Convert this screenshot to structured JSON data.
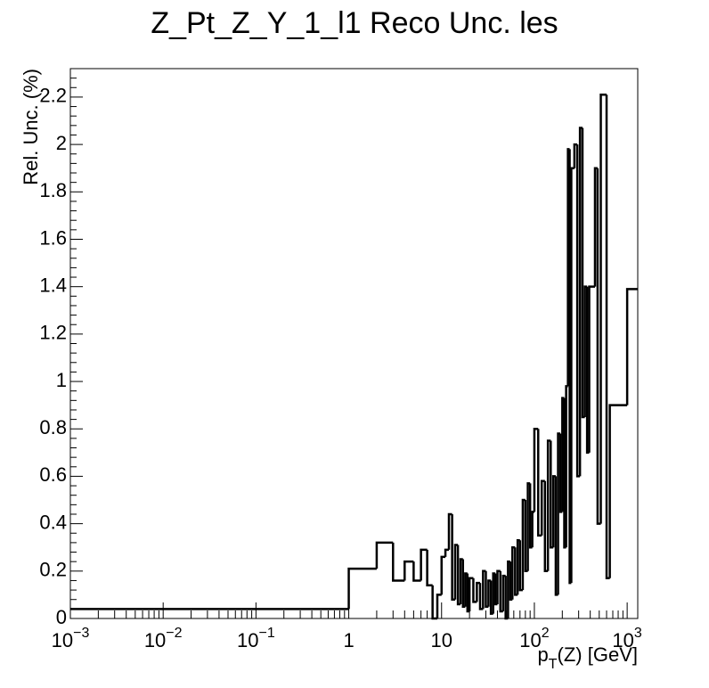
{
  "chart_data": {
    "type": "histogram",
    "title": "Z_Pt_Z_Y_1_l1 Reco Unc. les",
    "ylabel": "Rel. Unc. (%)",
    "xlabel_main": "p",
    "xlabel_sub": "T",
    "xlabel_rest": "(Z) [GeV]",
    "xscale": "log",
    "color": "#000000",
    "xlim": [
      0.001,
      1300
    ],
    "ylim": [
      0,
      2.32
    ],
    "xticks": [
      {
        "value": 0.001,
        "label": "10",
        "exp": "−3"
      },
      {
        "value": 0.01,
        "label": "10",
        "exp": "−2"
      },
      {
        "value": 0.1,
        "label": "10",
        "exp": "−1"
      },
      1,
      10,
      {
        "value": 100,
        "label": "10",
        "exp": "2"
      },
      {
        "value": 1000,
        "label": "10",
        "exp": "3"
      }
    ],
    "yticks": [
      0,
      0.2,
      0.4,
      0.6,
      0.8,
      1,
      1.2,
      1.4,
      1.6,
      1.8,
      2,
      2.2
    ],
    "bins": [
      0.001,
      1,
      2,
      3,
      4,
      5,
      6,
      7,
      8,
      9,
      10,
      11,
      12,
      13,
      14,
      15,
      16,
      17,
      18,
      19,
      20,
      22,
      24,
      26,
      28,
      30,
      32,
      34,
      36,
      38,
      40,
      43,
      46,
      49,
      52,
      55,
      58,
      62,
      66,
      70,
      75,
      80,
      85,
      90,
      95,
      100,
      110,
      120,
      130,
      140,
      150,
      160,
      170,
      180,
      190,
      200,
      210,
      220,
      230,
      240,
      250,
      270,
      290,
      310,
      330,
      350,
      370,
      390,
      450,
      480,
      520,
      600,
      650,
      1000,
      1300
    ],
    "values": [
      0.04,
      0.21,
      0.32,
      0.16,
      0.24,
      0.16,
      0.29,
      0.14,
      0,
      0.1,
      0.26,
      0.29,
      0.44,
      0.08,
      0.31,
      0.06,
      0.25,
      0.05,
      0.19,
      0.03,
      0.17,
      0.07,
      0.15,
      0.04,
      0.2,
      0.05,
      0.16,
      0.02,
      0.19,
      0.06,
      0.2,
      0.03,
      0.18,
      0,
      0.24,
      0.08,
      0.3,
      0.1,
      0.33,
      0.12,
      0.5,
      0.2,
      0.57,
      0.3,
      0.45,
      0.8,
      0.35,
      0.58,
      0.2,
      0.75,
      0.3,
      0.6,
      0.1,
      0.78,
      0.45,
      0.93,
      0.3,
      0.98,
      1.98,
      0.15,
      1.9,
      2.0,
      0.6,
      2.07,
      0.85,
      1.4,
      0.7,
      1.4,
      1.9,
      0.4,
      2.21,
      0.17,
      0.9,
      1.39
    ]
  }
}
